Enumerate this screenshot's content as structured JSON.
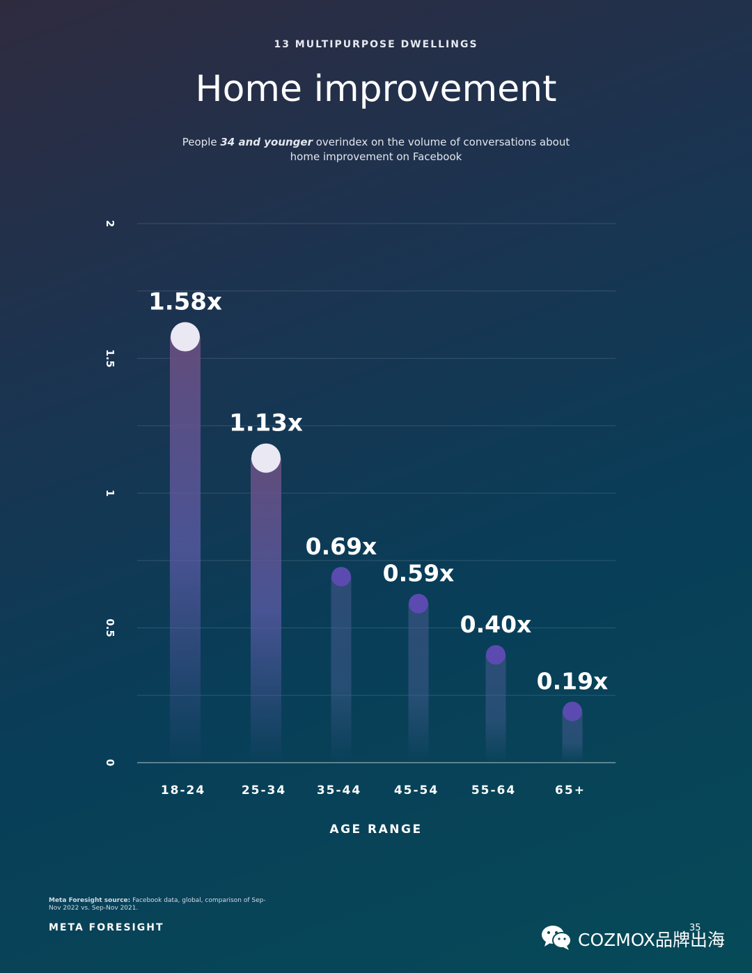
{
  "header": {
    "eyebrow": "13 MULTIPURPOSE DWELLINGS",
    "title": "Home improvement",
    "subtitle_pre": "People ",
    "subtitle_em": "34 and younger",
    "subtitle_post": " overindex on the volume of conversations about home improvement on Facebook"
  },
  "chart_data": {
    "type": "bar",
    "categories": [
      "18-24",
      "25-34",
      "35-44",
      "45-54",
      "55-64",
      "65+"
    ],
    "values": [
      1.58,
      1.13,
      0.69,
      0.59,
      0.4,
      0.19
    ],
    "value_labels": [
      "1.58x",
      "1.13x",
      "0.69x",
      "0.59x",
      "0.40x",
      "0.19x"
    ],
    "xlabel": "AGE RANGE",
    "ylabel": "",
    "ylim": [
      0,
      2
    ],
    "yticks": [
      0,
      0.5,
      1,
      1.5,
      2
    ],
    "ytick_labels": [
      "0",
      "0.5",
      "1",
      "1.5",
      "2"
    ],
    "grid": true,
    "colors": {
      "dot_light": "#e9e8f3",
      "dot_purple": "#5b4bb0",
      "bar_top": "#6a4f80",
      "bar_mid": "#5d5ca8"
    }
  },
  "footer": {
    "source_label": "Meta Foresight source:",
    "source_text": " Facebook data, global, comparison of Sep-Nov 2022 vs. Sep-Nov 2021.",
    "brand": "META FORESIGHT",
    "page_number": "35",
    "watermark": "COZMOX品牌出海"
  }
}
